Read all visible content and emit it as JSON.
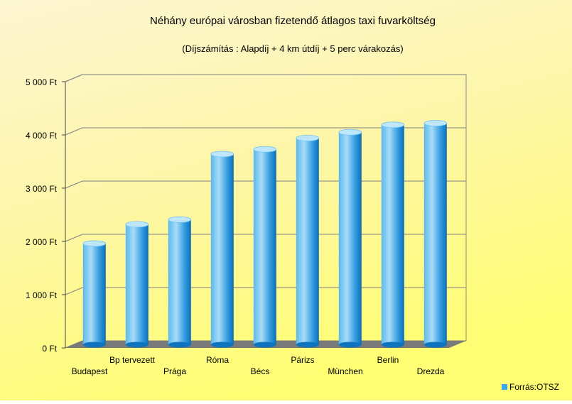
{
  "chart_data": {
    "type": "bar",
    "title": "Néhány európai városban fizetendő átlagos taxi fuvarköltség",
    "subtitle": "(Díjszámítás : Alapdíj + 4 km útdíj + 5 perc várakozás)",
    "categories": [
      "Budapest",
      "Bp tervezett",
      "Prága",
      "Róma",
      "Bécs",
      "Párizs",
      "München",
      "Berlin",
      "Drezda"
    ],
    "series": [
      {
        "name": "Forrás:OTSZ",
        "values": [
          1900,
          2260,
          2350,
          3580,
          3670,
          3880,
          3990,
          4130,
          4160
        ]
      }
    ],
    "yticks": [
      "0 Ft",
      "1 000 Ft",
      "2 000 Ft",
      "3 000 Ft",
      "4 000 Ft",
      "5 000 Ft"
    ],
    "ylim": [
      0,
      5000
    ],
    "grid": true,
    "legend_position": "bottom-right",
    "colors": {
      "bar_light": "#a8dcf8",
      "bar_mid": "#3aa8e6",
      "bar_dark": "#0a6fb8",
      "bar_top": "#bfe6fb",
      "floor": "#7a7a7a",
      "grid": "#7f7f7f",
      "background_top": "#fdf5c4",
      "background_bottom": "#fffb80"
    }
  }
}
